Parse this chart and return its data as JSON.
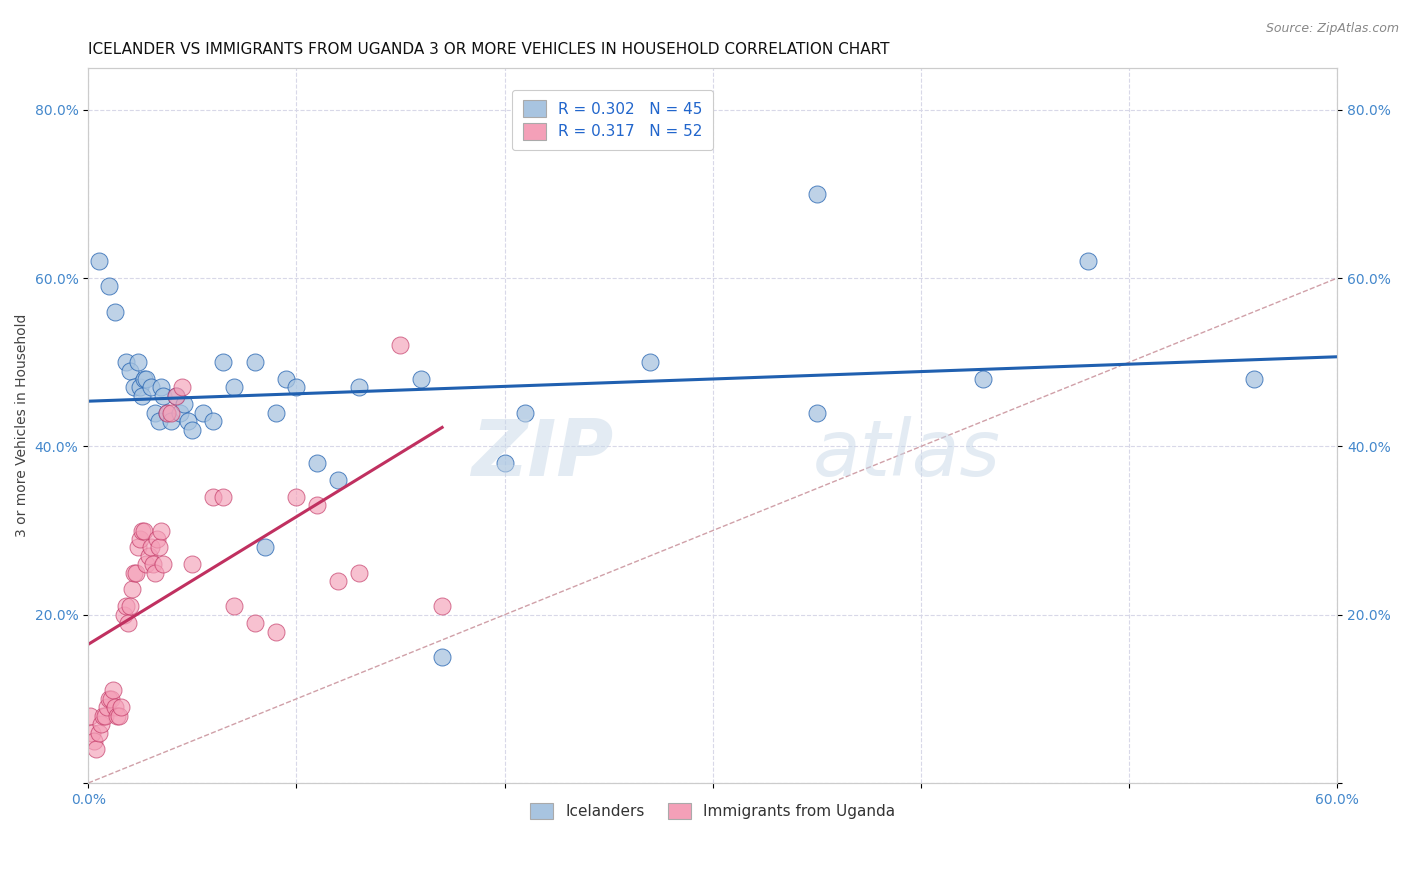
{
  "title": "ICELANDER VS IMMIGRANTS FROM UGANDA 3 OR MORE VEHICLES IN HOUSEHOLD CORRELATION CHART",
  "source": "Source: ZipAtlas.com",
  "ylabel": "3 or more Vehicles in Household",
  "xlim": [
    0.0,
    0.6
  ],
  "ylim": [
    0.0,
    0.85
  ],
  "legend_labels": [
    "Icelanders",
    "Immigrants from Uganda"
  ],
  "R_blue": 0.302,
  "N_blue": 45,
  "R_pink": 0.317,
  "N_pink": 52,
  "color_blue": "#a8c4e0",
  "color_pink": "#f4a0b8",
  "line_color_blue": "#2060b0",
  "line_color_pink": "#c03060",
  "watermark": "ZIPatlas",
  "blue_x": [
    0.005,
    0.01,
    0.013,
    0.018,
    0.02,
    0.022,
    0.024,
    0.025,
    0.026,
    0.027,
    0.028,
    0.03,
    0.032,
    0.034,
    0.035,
    0.036,
    0.038,
    0.04,
    0.042,
    0.044,
    0.046,
    0.048,
    0.05,
    0.055,
    0.06,
    0.065,
    0.07,
    0.08,
    0.085,
    0.09,
    0.095,
    0.1,
    0.11,
    0.12,
    0.13,
    0.16,
    0.17,
    0.2,
    0.21,
    0.27,
    0.35,
    0.43,
    0.48,
    0.56,
    0.35
  ],
  "blue_y": [
    0.62,
    0.59,
    0.56,
    0.5,
    0.49,
    0.47,
    0.5,
    0.47,
    0.46,
    0.48,
    0.48,
    0.47,
    0.44,
    0.43,
    0.47,
    0.46,
    0.44,
    0.43,
    0.46,
    0.44,
    0.45,
    0.43,
    0.42,
    0.44,
    0.43,
    0.5,
    0.47,
    0.5,
    0.28,
    0.44,
    0.48,
    0.47,
    0.38,
    0.36,
    0.47,
    0.48,
    0.15,
    0.38,
    0.44,
    0.5,
    0.44,
    0.48,
    0.62,
    0.48,
    0.7
  ],
  "pink_x": [
    0.001,
    0.002,
    0.003,
    0.004,
    0.005,
    0.006,
    0.007,
    0.008,
    0.009,
    0.01,
    0.011,
    0.012,
    0.013,
    0.014,
    0.015,
    0.016,
    0.017,
    0.018,
    0.019,
    0.02,
    0.021,
    0.022,
    0.023,
    0.024,
    0.025,
    0.026,
    0.027,
    0.028,
    0.029,
    0.03,
    0.031,
    0.032,
    0.033,
    0.034,
    0.035,
    0.036,
    0.038,
    0.04,
    0.042,
    0.045,
    0.05,
    0.06,
    0.065,
    0.07,
    0.08,
    0.09,
    0.1,
    0.11,
    0.12,
    0.13,
    0.15,
    0.17
  ],
  "pink_y": [
    0.08,
    0.06,
    0.05,
    0.04,
    0.06,
    0.07,
    0.08,
    0.08,
    0.09,
    0.1,
    0.1,
    0.11,
    0.09,
    0.08,
    0.08,
    0.09,
    0.2,
    0.21,
    0.19,
    0.21,
    0.23,
    0.25,
    0.25,
    0.28,
    0.29,
    0.3,
    0.3,
    0.26,
    0.27,
    0.28,
    0.26,
    0.25,
    0.29,
    0.28,
    0.3,
    0.26,
    0.44,
    0.44,
    0.46,
    0.47,
    0.26,
    0.34,
    0.34,
    0.21,
    0.19,
    0.18,
    0.34,
    0.33,
    0.24,
    0.25,
    0.52,
    0.21
  ],
  "diag_line_color": "#d0a0a8",
  "title_fontsize": 11,
  "axis_label_fontsize": 10,
  "tick_fontsize": 10,
  "legend_fontsize": 11
}
